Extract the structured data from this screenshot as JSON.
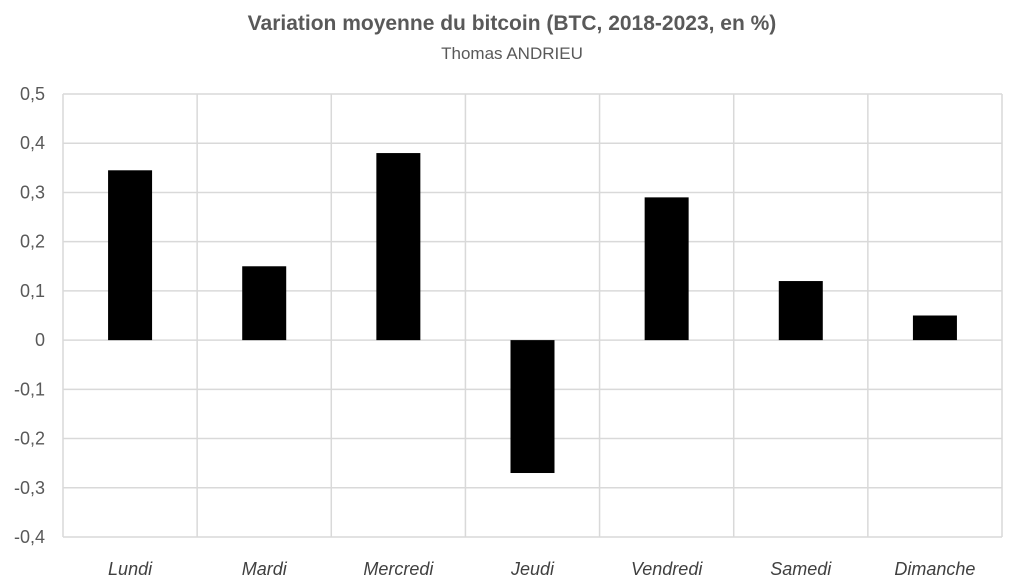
{
  "chart_data": {
    "type": "bar",
    "title": "Variation moyenne du bitcoin (BTC, 2018-2023, en %)",
    "subtitle": "Thomas ANDRIEU",
    "categories": [
      "Lundi",
      "Mardi",
      "Mercredi",
      "Jeudi",
      "Vendredi",
      "Samedi",
      "Dimanche"
    ],
    "values": [
      0.345,
      0.15,
      0.38,
      -0.27,
      0.29,
      0.12,
      0.05
    ],
    "ylim": [
      -0.4,
      0.5
    ],
    "yticks": [
      "0,5",
      "0,4",
      "0,3",
      "0,2",
      "0,1",
      "0",
      "-0,1",
      "-0,2",
      "-0,3",
      "-0,4"
    ],
    "ytick_values": [
      0.5,
      0.4,
      0.3,
      0.2,
      0.1,
      0,
      -0.1,
      -0.2,
      -0.3,
      -0.4
    ],
    "grid": true,
    "bar_color": "#000000",
    "grid_color": "#d9d9d9"
  }
}
